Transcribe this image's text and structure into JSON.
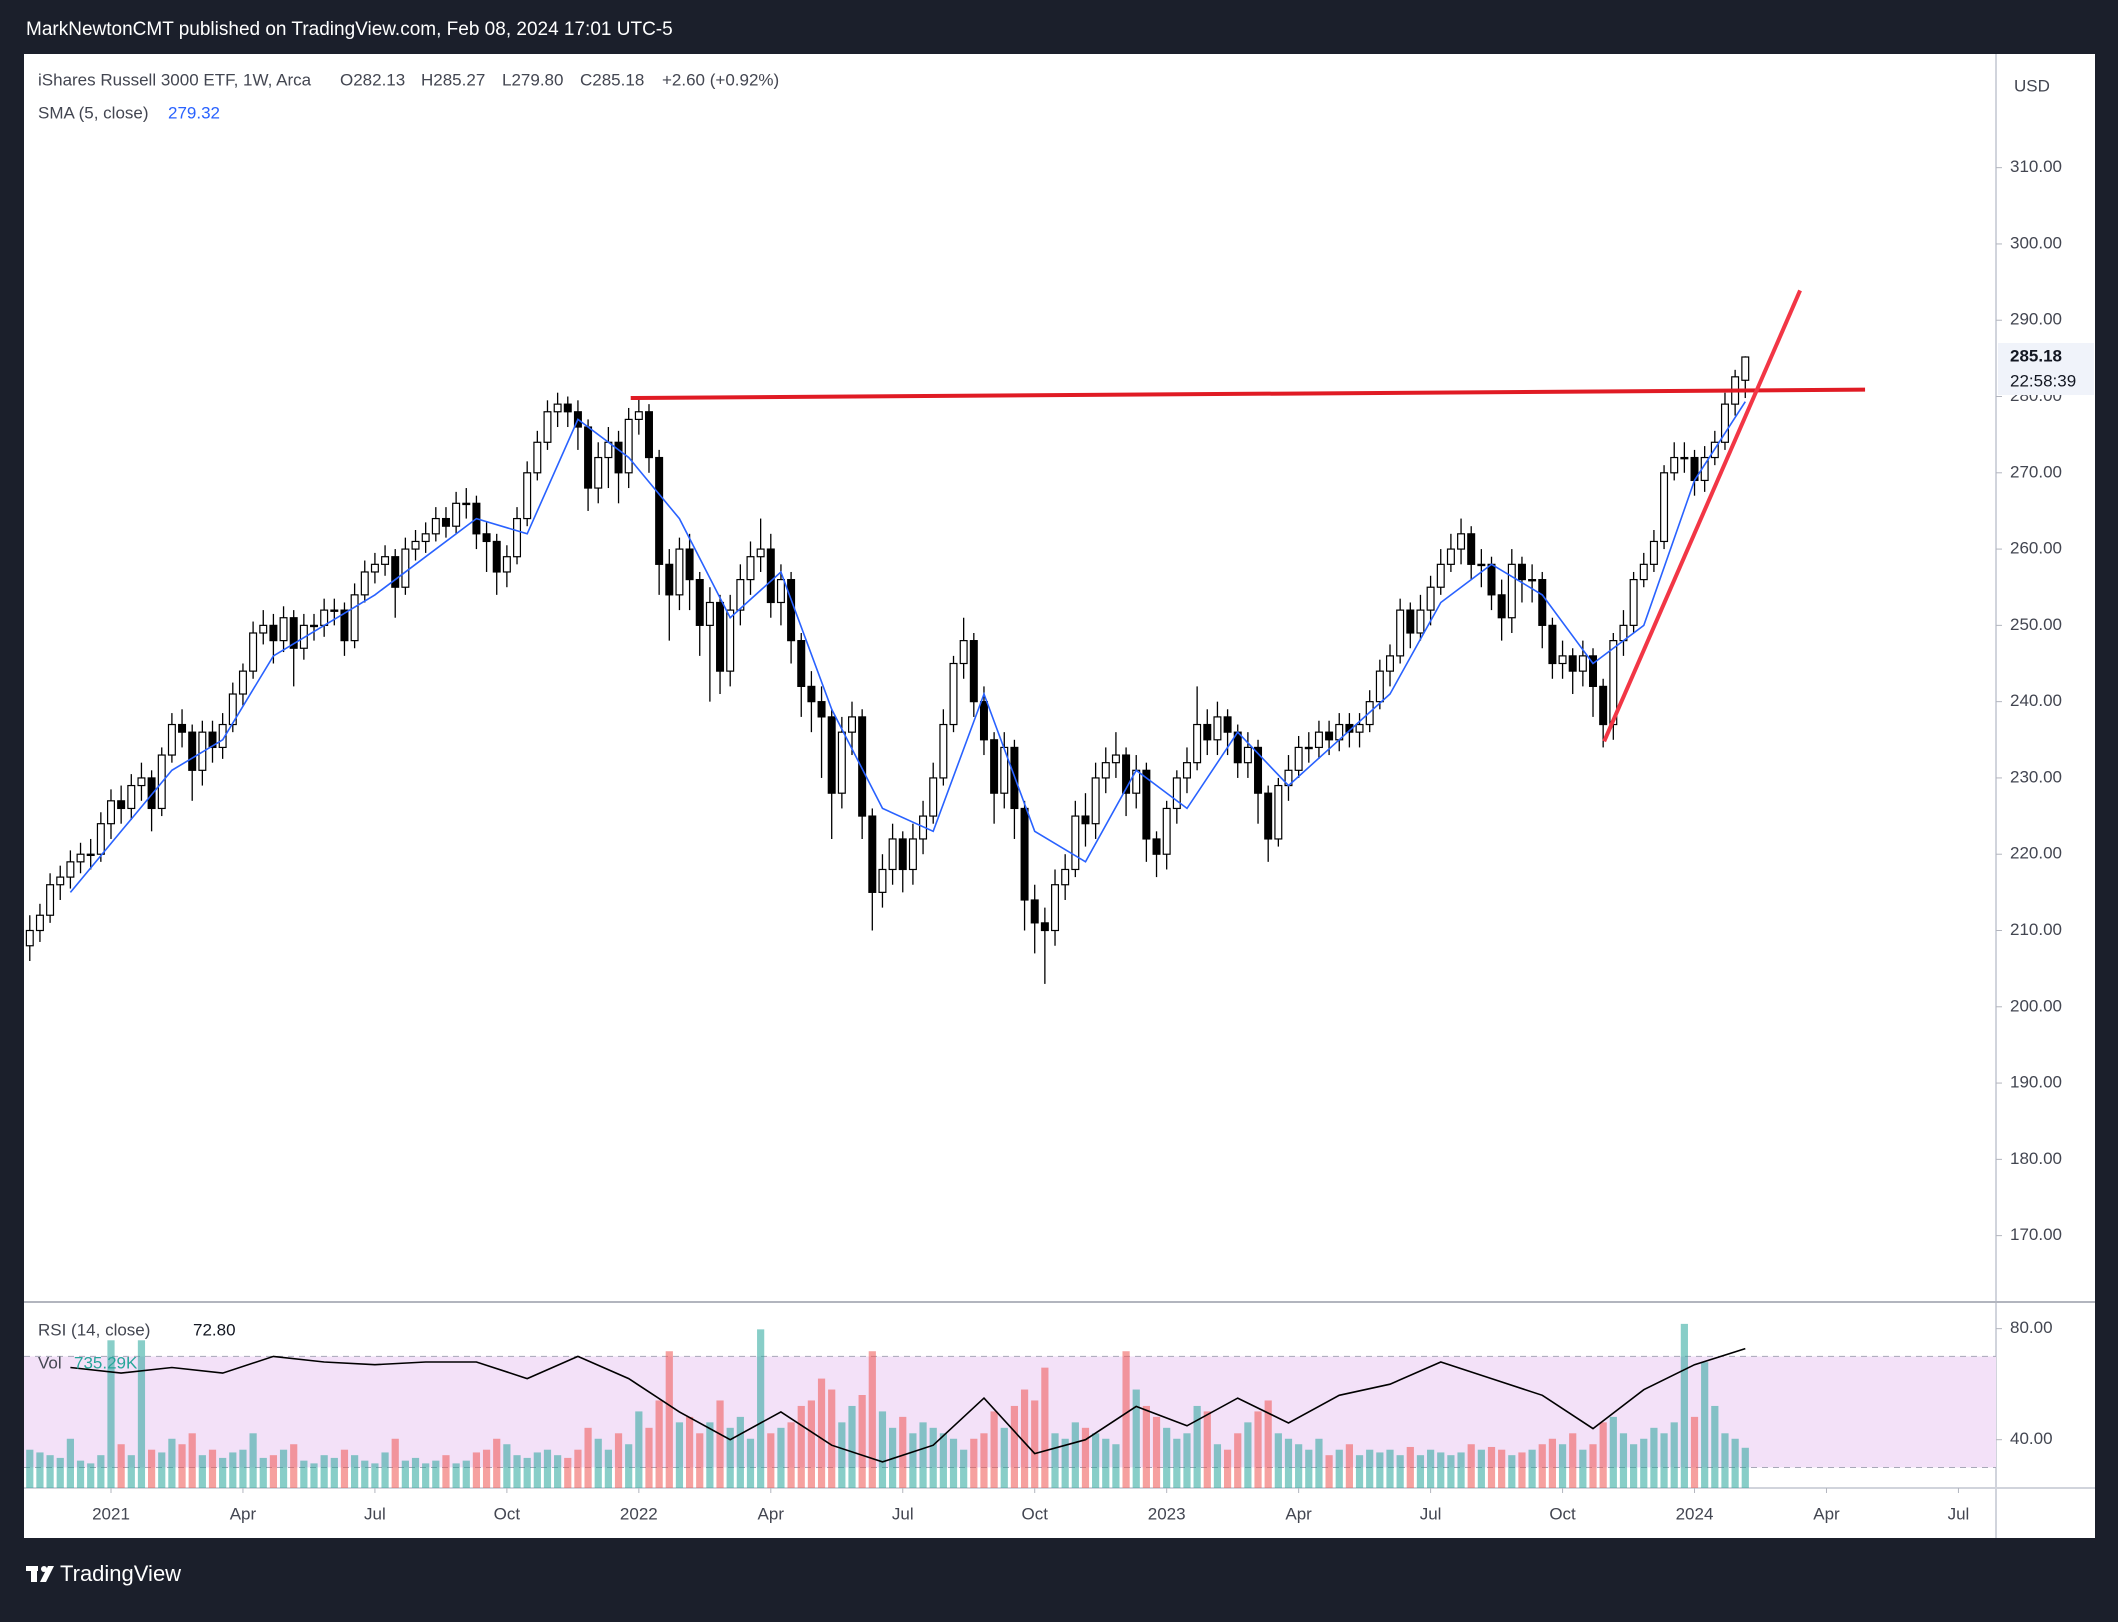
{
  "publish_line": "MarkNewtonCMT published on TradingView.com, Feb 08, 2024 17:01 UTC-5",
  "footer": "TradingView",
  "chart_data": [
    {
      "type": "candlestick",
      "title": "iShares Russell 3000 ETF, 1W, Arca",
      "ohlc_labels": [
        "O282.13",
        "H285.27",
        "L279.80",
        "C285.18",
        "+2.60 (+0.92%)"
      ],
      "currency": "USD",
      "last_price": {
        "value": 285.18,
        "label": "285.18"
      },
      "countdown": "22:58:39",
      "up_color": "#ffffff",
      "down_color": "#000000",
      "outline_color": "#000000",
      "open": [
        208,
        210,
        212,
        216,
        217,
        219,
        220,
        220,
        224,
        227,
        226,
        229,
        230,
        226,
        233,
        237,
        236,
        231,
        236,
        234,
        237,
        241,
        244,
        249,
        250,
        248,
        251,
        247,
        250,
        250,
        252,
        252,
        248,
        254,
        257,
        258,
        259,
        255,
        260,
        261,
        262,
        264,
        263,
        266,
        266,
        262,
        261,
        257,
        259,
        264,
        270,
        274,
        278,
        279,
        278,
        276,
        268,
        272,
        274,
        270,
        277,
        278,
        272,
        258,
        254,
        260,
        256,
        250,
        253,
        244,
        252,
        256,
        259,
        260,
        253,
        256,
        248,
        242,
        240,
        238,
        228,
        236,
        238,
        225,
        215,
        218,
        222,
        218,
        222,
        225,
        230,
        237,
        245,
        248,
        240,
        235,
        228,
        234,
        226,
        214,
        211,
        210,
        216,
        218,
        225,
        224,
        230,
        232,
        233,
        228,
        231,
        222,
        220,
        226,
        230,
        232,
        237,
        235,
        238,
        236,
        232,
        234,
        228,
        222,
        229,
        231,
        234,
        234,
        236,
        235,
        237,
        236,
        237,
        240,
        244,
        246,
        252,
        249,
        252,
        255,
        258,
        260,
        262,
        258,
        258,
        254,
        251,
        258,
        256,
        256,
        250,
        245,
        246,
        244,
        246,
        242,
        237,
        248,
        250,
        256,
        258,
        261,
        270,
        272,
        272,
        269,
        272,
        274,
        279,
        282.13
      ],
      "high": [
        212,
        213.5,
        217.5,
        218.5,
        220.5,
        221.5,
        222,
        225.5,
        228.5,
        229,
        230.5,
        232,
        231,
        234,
        238.5,
        239,
        237,
        237.5,
        237.5,
        238.5,
        242.5,
        245,
        250.5,
        252,
        251.5,
        252.5,
        252,
        251.5,
        251.5,
        253.5,
        253.5,
        253,
        255.5,
        258.5,
        259.5,
        260.5,
        260,
        261.5,
        262.5,
        263.5,
        265.5,
        265.5,
        267.5,
        268,
        267,
        263.5,
        262,
        260.5,
        265.5,
        271.5,
        275.5,
        279.5,
        280.5,
        280,
        279.5,
        277,
        274,
        276,
        275.5,
        278.5,
        280,
        279,
        273,
        260,
        261.5,
        262,
        257,
        255,
        254,
        254,
        258,
        261,
        264,
        262,
        258,
        257,
        249,
        244,
        242,
        239,
        238,
        240,
        239,
        226,
        220,
        224,
        223,
        224,
        227,
        232,
        239,
        246,
        251,
        249,
        242,
        236,
        236,
        235,
        227,
        216,
        213,
        218,
        220,
        227,
        228,
        232,
        234,
        236,
        234,
        233,
        232,
        223,
        227,
        231,
        234,
        242,
        239,
        240,
        239,
        237,
        236,
        235,
        229,
        230,
        233,
        235.5,
        236,
        237.5,
        237.5,
        238.5,
        238.5,
        238.5,
        241.5,
        245.5,
        247.5,
        253.5,
        253,
        254,
        256.5,
        260,
        262,
        264,
        263,
        260,
        259,
        256,
        260,
        259,
        258,
        257,
        251,
        248,
        247,
        248,
        247,
        243,
        249,
        252,
        257,
        259.5,
        262.5,
        271,
        274,
        274,
        273,
        273.5,
        275.5,
        280.5,
        283.5,
        285.27
      ],
      "low": [
        206,
        208.5,
        211,
        214,
        215.5,
        217.5,
        218,
        219,
        222,
        224,
        224.5,
        227,
        223,
        225,
        232,
        234,
        227,
        229,
        232,
        232.5,
        236,
        239.5,
        243,
        247.5,
        245,
        246.5,
        242,
        245.5,
        248,
        248.5,
        250,
        246,
        247,
        253,
        255.5,
        256.5,
        251,
        254,
        258.5,
        259.5,
        261,
        261.5,
        262,
        264,
        260,
        257,
        254,
        255,
        258,
        263,
        269,
        273,
        276,
        276,
        273,
        265,
        266,
        268,
        266,
        268,
        275,
        270,
        254,
        248,
        252,
        252,
        246,
        240,
        241,
        242,
        250,
        254,
        257,
        251,
        250,
        245,
        238,
        236,
        230,
        222,
        226,
        233,
        222,
        210,
        213,
        216,
        215,
        216,
        220,
        224,
        229,
        236,
        243,
        238,
        233,
        224,
        226,
        222,
        210,
        207,
        203,
        208,
        214,
        217,
        221,
        222,
        228,
        230,
        225,
        226,
        219,
        217,
        218,
        224,
        228,
        231,
        233,
        233,
        233,
        230,
        230,
        224,
        219,
        221,
        227,
        230,
        232,
        232.5,
        233,
        233.5,
        234,
        234,
        236,
        239,
        242,
        245,
        247,
        248,
        250,
        254,
        257,
        258,
        256,
        255,
        252,
        248,
        249,
        253,
        253,
        247,
        243,
        243,
        241,
        242,
        238,
        234,
        235,
        246,
        249,
        255,
        257,
        260,
        269,
        270,
        267,
        267.5,
        271,
        273,
        277.5,
        279.8
      ],
      "close": [
        210,
        212,
        216,
        217,
        219,
        220,
        220,
        224,
        227,
        226,
        229,
        230,
        226,
        233,
        237,
        236,
        231,
        236,
        234,
        237,
        241,
        244,
        249,
        250,
        248,
        251,
        247,
        250,
        250,
        252,
        252,
        248,
        254,
        257,
        258,
        259,
        255,
        260,
        261,
        262,
        264,
        263,
        266,
        266,
        262,
        261,
        257,
        259,
        264,
        270,
        274,
        278,
        279,
        278,
        276,
        268,
        272,
        274,
        270,
        277,
        278,
        272,
        258,
        254,
        260,
        256,
        250,
        253,
        244,
        252,
        256,
        259,
        260,
        253,
        256,
        248,
        242,
        240,
        238,
        228,
        236,
        238,
        225,
        215,
        218,
        222,
        218,
        222,
        225,
        230,
        237,
        245,
        248,
        240,
        235,
        228,
        234,
        226,
        214,
        211,
        210,
        216,
        218,
        225,
        224,
        230,
        232,
        233,
        228,
        231,
        222,
        220,
        226,
        230,
        232,
        237,
        235,
        238,
        236,
        232,
        234,
        228,
        222,
        229,
        231,
        234,
        234,
        236,
        235,
        237,
        236,
        237,
        240,
        244,
        246,
        252,
        249,
        252,
        255,
        258,
        260,
        262,
        258,
        258,
        254,
        251,
        258,
        256,
        256,
        250,
        245,
        246,
        244,
        246,
        242,
        237,
        248,
        250,
        256,
        258,
        261,
        270,
        272,
        272,
        269,
        272,
        274,
        279,
        282.58,
        285.18
      ],
      "sma": {
        "name": "SMA (5, close)",
        "value_label": "279.32",
        "color": "#2962ff",
        "x": [
          4,
          9,
          14,
          19,
          24,
          29,
          34,
          39,
          44,
          49,
          54,
          59,
          64,
          69,
          74,
          79,
          84,
          89,
          94,
          99,
          104,
          109,
          114,
          119,
          124,
          129,
          134,
          139,
          144,
          149,
          154,
          159,
          164,
          169
        ],
        "values": [
          215,
          223,
          231,
          235,
          246,
          250,
          254,
          259,
          264,
          262,
          277,
          272,
          264,
          251,
          257,
          239,
          226,
          223,
          241,
          223,
          219,
          231,
          226,
          236,
          229,
          235,
          241,
          253,
          258,
          254,
          245,
          250,
          269,
          279.32
        ]
      },
      "trendlines": [
        {
          "color": "#e01b24",
          "points": [
            [
              59.2,
              279.8
            ],
            [
              180.8,
              280.9
            ]
          ]
        },
        {
          "color": "#f23645",
          "points": [
            [
              155.1,
              234.8
            ],
            [
              174.4,
              293.9
            ]
          ]
        }
      ],
      "xlim": [
        -0.57,
        193.7
      ],
      "ylim": [
        161.3,
        324.9
      ],
      "yticks": [
        {
          "value": 170,
          "label": "170.00"
        },
        {
          "value": 180,
          "label": "180.00"
        },
        {
          "value": 190,
          "label": "190.00"
        },
        {
          "value": 200,
          "label": "200.00"
        },
        {
          "value": 210,
          "label": "210.00"
        },
        {
          "value": 220,
          "label": "220.00"
        },
        {
          "value": 230,
          "label": "230.00"
        },
        {
          "value": 240,
          "label": "240.00"
        },
        {
          "value": 250,
          "label": "250.00"
        },
        {
          "value": 260,
          "label": "260.00"
        },
        {
          "value": 270,
          "label": "270.00"
        },
        {
          "value": 280,
          "label": "280.00"
        },
        {
          "value": 290,
          "label": "290.00"
        },
        {
          "value": 300,
          "label": "300.00"
        },
        {
          "value": 310,
          "label": "310.00"
        }
      ],
      "grid": false
    },
    {
      "type": "combo",
      "series": [
        {
          "name": "RSI (14, close)",
          "value_label": "72.80",
          "color": "#000000",
          "x": [
            4,
            9,
            14,
            19,
            24,
            29,
            34,
            39,
            44,
            49,
            54,
            59,
            64,
            69,
            74,
            79,
            84,
            89,
            94,
            99,
            104,
            109,
            114,
            119,
            124,
            129,
            134,
            139,
            144,
            149,
            154,
            159,
            164,
            169
          ],
          "values": [
            66,
            64,
            66,
            64,
            70,
            68,
            67,
            68,
            68,
            62,
            70,
            62,
            50,
            40,
            50,
            38,
            32,
            38,
            55,
            35,
            40,
            52,
            45,
            55,
            46,
            56,
            60,
            68,
            62,
            56,
            44,
            58,
            67,
            72.8
          ]
        },
        {
          "name": "Vol",
          "value_label": "735.29K",
          "axis": "y2",
          "up_color": "#26a69a",
          "down_color": "#ef5350",
          "label_color": "#26a69a",
          "values": [
            700,
            650,
            600,
            550,
            900,
            500,
            450,
            600,
            2700,
            800,
            600,
            2700,
            700,
            650,
            900,
            800,
            1000,
            600,
            700,
            550,
            650,
            700,
            1000,
            550,
            600,
            700,
            800,
            500,
            450,
            600,
            550,
            700,
            600,
            500,
            450,
            650,
            900,
            500,
            550,
            450,
            500,
            600,
            450,
            500,
            650,
            700,
            900,
            800,
            600,
            550,
            650,
            700,
            600,
            550,
            700,
            1100,
            900,
            700,
            1000,
            800,
            1400,
            1100,
            1600,
            2500,
            1200,
            1300,
            1000,
            1200,
            1600,
            1100,
            1300,
            900,
            2900,
            1000,
            1100,
            1200,
            1500,
            1600,
            2000,
            1800,
            1200,
            1500,
            1700,
            2500,
            1400,
            1100,
            1300,
            1000,
            1200,
            1100,
            1000,
            900,
            700,
            900,
            1000,
            1400,
            1100,
            1500,
            1800,
            1600,
            2200,
            1000,
            900,
            1200,
            1100,
            1000,
            900,
            800,
            2500,
            1800,
            1500,
            1300,
            1100,
            900,
            1000,
            1500,
            1400,
            800,
            700,
            1000,
            1200,
            1400,
            1600,
            1000,
            900,
            800,
            700,
            900,
            600,
            700,
            800,
            600,
            700,
            650,
            700,
            600,
            750,
            600,
            700,
            650,
            600,
            650,
            800,
            700,
            750,
            700,
            600,
            650,
            700,
            800,
            900,
            800,
            1000,
            700,
            800,
            1200,
            1300,
            1000,
            800,
            900,
            1100,
            1000,
            1200,
            3000,
            1300,
            2300,
            1500,
            1000,
            900,
            735.29
          ]
        }
      ],
      "band": [
        30,
        70
      ],
      "band_color": "#f3e1f8",
      "xlim": [
        -0.57,
        193.7
      ],
      "ylim": [
        22.6,
        89.6
      ],
      "yticks": [
        {
          "value": 40,
          "label": "40.00"
        },
        {
          "value": 80,
          "label": "80.00"
        }
      ],
      "y2lim": [
        0,
        3400
      ],
      "xticks": [
        {
          "value": 8,
          "label": "2021"
        },
        {
          "value": 21,
          "label": "Apr"
        },
        {
          "value": 34,
          "label": "Jul"
        },
        {
          "value": 47,
          "label": "Oct"
        },
        {
          "value": 60,
          "label": "2022"
        },
        {
          "value": 73,
          "label": "Apr"
        },
        {
          "value": 86,
          "label": "Jul"
        },
        {
          "value": 99,
          "label": "Oct"
        },
        {
          "value": 112,
          "label": "2023"
        },
        {
          "value": 125,
          "label": "Apr"
        },
        {
          "value": 138,
          "label": "Jul"
        },
        {
          "value": 151,
          "label": "Oct"
        },
        {
          "value": 164,
          "label": "2024"
        },
        {
          "value": 177,
          "label": "Apr"
        },
        {
          "value": 190,
          "label": "Jul"
        }
      ]
    }
  ]
}
